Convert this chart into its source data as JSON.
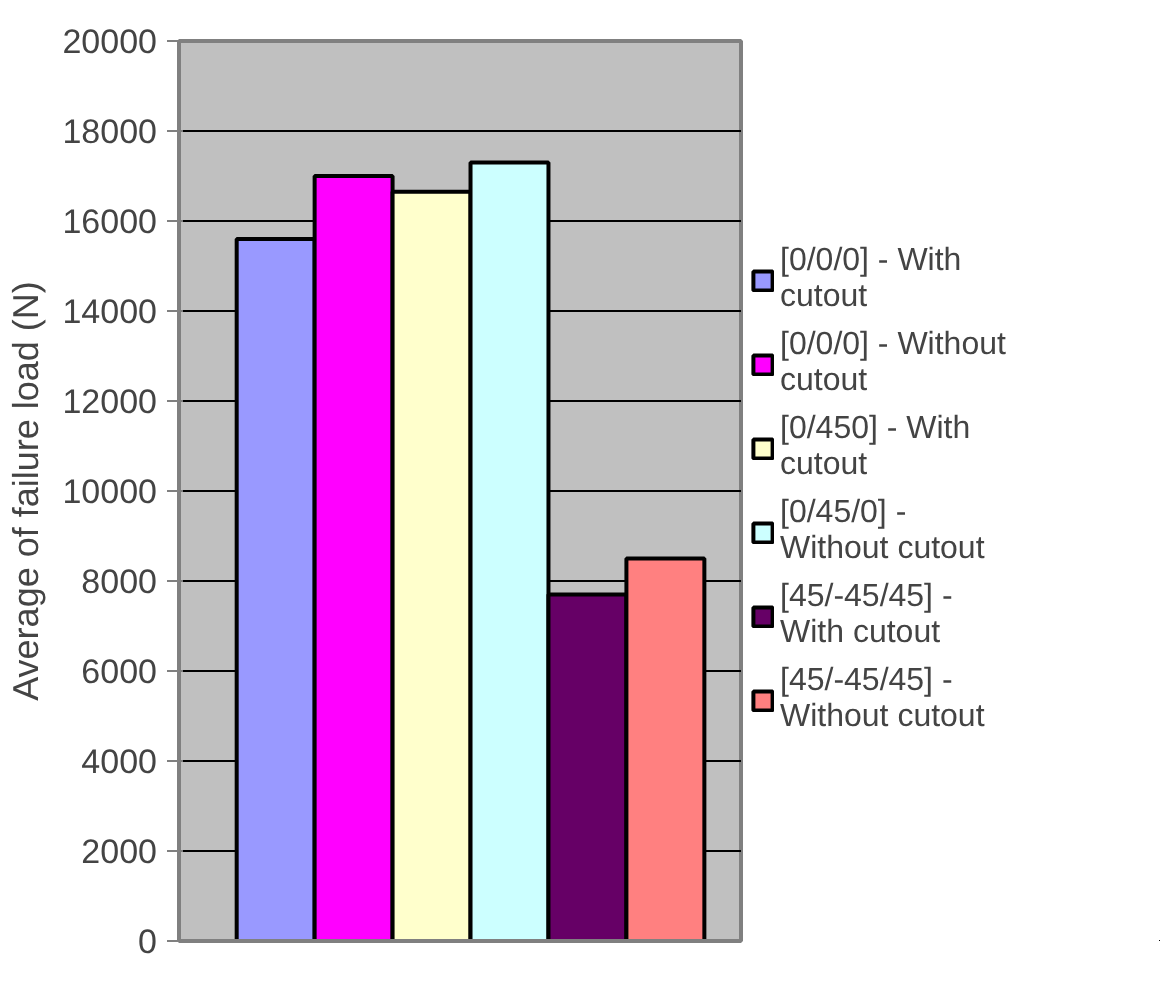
{
  "chart_data": {
    "type": "bar",
    "ylabel": "Average of failure load (N)",
    "categories": [
      null
    ],
    "series": [
      {
        "name": "[0/0/0] - With cutout",
        "color": "#9999ff",
        "values": [
          15600
        ]
      },
      {
        "name": "[0/0/0] - Without cutout",
        "color": "#ff00ff",
        "values": [
          17000
        ]
      },
      {
        "name": "[0/450] - With cutout",
        "color": "#ffffcc",
        "values": [
          16650
        ]
      },
      {
        "name": "[0/45/0] - Without cutout",
        "color": "#ccffff",
        "values": [
          17300
        ]
      },
      {
        "name": "[45/-45/45] - With cutout",
        "color": "#660066",
        "values": [
          7700
        ]
      },
      {
        "name": "[45/-45/45] - Without cutout",
        "color": "#ff8080",
        "values": [
          8500
        ]
      }
    ],
    "ylim": [
      0,
      20000
    ],
    "yticks": [
      0,
      2000,
      4000,
      6000,
      8000,
      10000,
      12000,
      14000,
      16000,
      18000,
      20000
    ],
    "grid": "y",
    "legend": "right",
    "tick_labels": "y"
  }
}
